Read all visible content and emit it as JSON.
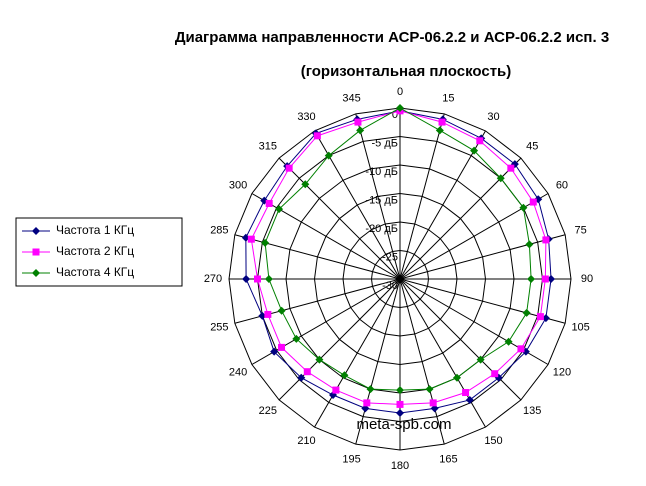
{
  "chart_data": {
    "type": "radar",
    "title": "Диаграмма направленности АСР-06.2.2 и АСР-06.2.2 исп. 3",
    "subtitle": "(горизонтальная плоскость)",
    "annotation": "meta-spb.com",
    "categories": [
      "0",
      "15",
      "30",
      "45",
      "60",
      "75",
      "90",
      "105",
      "120",
      "135",
      "150",
      "165",
      "180",
      "195",
      "210",
      "225",
      "240",
      "255",
      "270",
      "285",
      "300",
      "315",
      "330",
      "345"
    ],
    "ylim": [
      -30,
      0
    ],
    "yticks": [
      0,
      {
        "value": -5,
        "label": "-5 дБ"
      },
      {
        "value": -10,
        "label": "-10 дБ"
      },
      {
        "value": -15,
        "label": "-15 дБ"
      },
      {
        "value": -20,
        "label": "-20 дБ"
      },
      -25,
      -30
    ],
    "grid": true,
    "legend": "left",
    "series": [
      {
        "name": "Частота 1 КГц",
        "color": "#000080",
        "marker": "diamond",
        "values": [
          -0.5,
          -1,
          -1.5,
          -1.5,
          -2,
          -3,
          -3.5,
          -3.5,
          -4.5,
          -5.5,
          -5.5,
          -6.5,
          -6.5,
          -6.5,
          -6.5,
          -5.5,
          -4.5,
          -5,
          -3,
          -2,
          -2.5,
          -2,
          -0.5,
          -1
        ]
      },
      {
        "name": "Частота 2 КГц",
        "color": "#ff00ff",
        "marker": "square",
        "values": [
          -0.5,
          -1.5,
          -2,
          -2.5,
          -3,
          -3.5,
          -4.5,
          -4.5,
          -5.5,
          -6.5,
          -7,
          -7.5,
          -8,
          -7.5,
          -7.5,
          -7,
          -6,
          -6,
          -5,
          -3,
          -3.5,
          -2.5,
          -1,
          -1.5
        ]
      },
      {
        "name": "Частота 4 КГц",
        "color": "#008000",
        "marker": "diamond",
        "values": [
          0,
          -3,
          -4,
          -5,
          -5,
          -6.5,
          -7,
          -7,
          -8,
          -10,
          -10,
          -10,
          -10.5,
          -10,
          -10.5,
          -10,
          -9,
          -8.5,
          -7,
          -5.5,
          -5.5,
          -6.5,
          -5,
          -3
        ]
      }
    ]
  }
}
